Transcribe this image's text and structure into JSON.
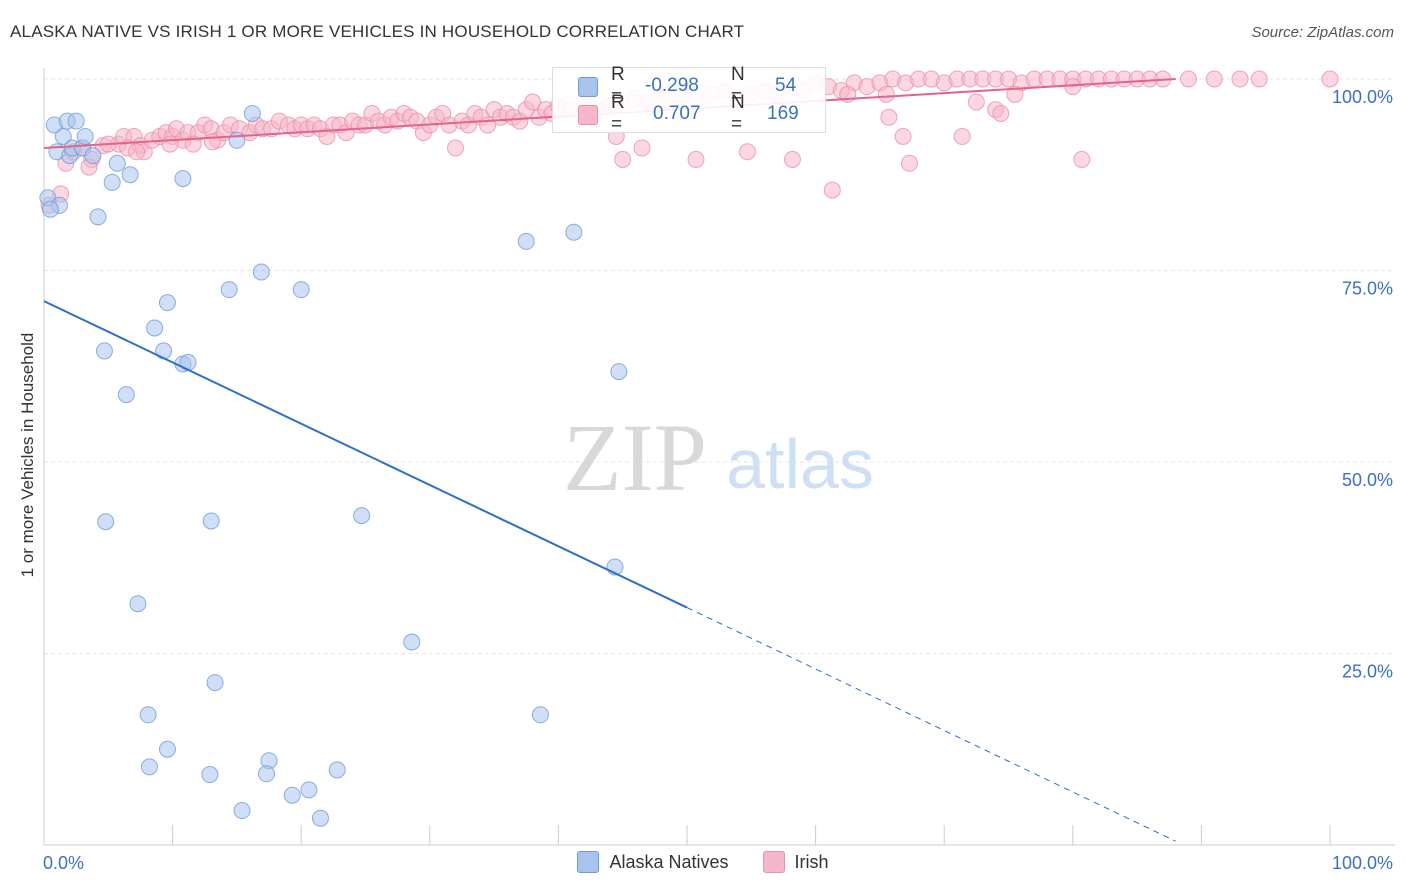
{
  "header": {
    "title": "ALASKA NATIVE VS IRISH 1 OR MORE VEHICLES IN HOUSEHOLD CORRELATION CHART",
    "source": "Source: ZipAtlas.com"
  },
  "watermark": {
    "zip": "ZIP",
    "atlas": "atlas"
  },
  "stats": {
    "series1": {
      "r_label": "R =",
      "r_value": "-0.298",
      "n_label": "N =",
      "n_value": "54"
    },
    "series2": {
      "r_label": "R =",
      "r_value": "0.707",
      "n_label": "N =",
      "n_value": "169"
    }
  },
  "colors": {
    "alaska_fill": "#a9c4ec",
    "alaska_stroke": "#6f9bdc",
    "alaska_line": "#2d6fcc",
    "irish_fill": "#f5b7c9",
    "irish_stroke": "#ec8faa",
    "irish_line": "#e4628b",
    "tick_label": "#3d6fc4",
    "grid": "#e6e6e6"
  },
  "chart_data": {
    "type": "scatter",
    "title": "ALASKA NATIVE VS IRISH 1 OR MORE VEHICLES IN HOUSEHOLD CORRELATION CHART",
    "xlabel": "",
    "ylabel": "1 or more Vehicles in Household",
    "xlim": [
      0,
      100
    ],
    "ylim": [
      0,
      100
    ],
    "x_tick_labels": [
      "0.0%",
      "100.0%"
    ],
    "y_ticks": [
      25,
      50,
      75,
      100
    ],
    "y_tick_labels": [
      "25.0%",
      "50.0%",
      "75.0%",
      "100.0%"
    ],
    "legend": [
      "Alaska Natives",
      "Irish"
    ],
    "series": [
      {
        "name": "Alaska Natives",
        "trend": {
          "x": [
            0,
            50
          ],
          "y": [
            71.0,
            31.0
          ],
          "dashed_to": [
            88.0,
            0.5
          ]
        },
        "points": [
          [
            0.3,
            84.5
          ],
          [
            0.8,
            94
          ],
          [
            1.0,
            90.5
          ],
          [
            1.2,
            83.5
          ],
          [
            1.5,
            92.5
          ],
          [
            1.8,
            94.5
          ],
          [
            2.0,
            90
          ],
          [
            2.2,
            91
          ],
          [
            2.5,
            94.5
          ],
          [
            3.0,
            91
          ],
          [
            3.2,
            92.5
          ],
          [
            3.8,
            90
          ],
          [
            4.2,
            82
          ],
          [
            5.3,
            86.5
          ],
          [
            5.7,
            89
          ],
          [
            6.7,
            87.5
          ],
          [
            10.8,
            87
          ],
          [
            15.0,
            92
          ],
          [
            16.2,
            95.5
          ],
          [
            14.4,
            72.5
          ],
          [
            16.9,
            74.8
          ],
          [
            20.0,
            72.5
          ],
          [
            8.6,
            67.5
          ],
          [
            9.6,
            70.8
          ],
          [
            4.7,
            64.5
          ],
          [
            9.3,
            64.5
          ],
          [
            10.8,
            62.8
          ],
          [
            11.2,
            63
          ],
          [
            6.4,
            58.8
          ],
          [
            37.5,
            78.8
          ],
          [
            41.2,
            80
          ],
          [
            44.7,
            61.8
          ],
          [
            4.8,
            42.2
          ],
          [
            13.0,
            42.3
          ],
          [
            24.7,
            43
          ],
          [
            44.4,
            36.3
          ],
          [
            7.3,
            31.5
          ],
          [
            28.6,
            26.5
          ],
          [
            13.3,
            21.2
          ],
          [
            8.1,
            17
          ],
          [
            38.6,
            17
          ],
          [
            9.6,
            12.5
          ],
          [
            17.5,
            11
          ],
          [
            8.2,
            10.2
          ],
          [
            12.9,
            9.2
          ],
          [
            17.3,
            9.3
          ],
          [
            22.8,
            9.8
          ],
          [
            19.3,
            6.5
          ],
          [
            20.6,
            7.2
          ],
          [
            15.4,
            4.5
          ],
          [
            21.5,
            3.5
          ],
          [
            0.5,
            83
          ]
        ]
      },
      {
        "name": "Irish",
        "trend": {
          "x": [
            0,
            88
          ],
          "y": [
            91.0,
            100.0
          ]
        },
        "points": [
          [
            0.4,
            83.5
          ],
          [
            1.3,
            85
          ],
          [
            1.7,
            89
          ],
          [
            2.3,
            90.5
          ],
          [
            3.0,
            91
          ],
          [
            3.7,
            89.5
          ],
          [
            4.6,
            91.3
          ],
          [
            5.8,
            91.5
          ],
          [
            6.2,
            92.5
          ],
          [
            7.0,
            92.5
          ],
          [
            7.5,
            91.3
          ],
          [
            7.8,
            90.5
          ],
          [
            8.4,
            92
          ],
          [
            9.0,
            92.5
          ],
          [
            9.5,
            93
          ],
          [
            10.0,
            92.5
          ],
          [
            10.3,
            93.5
          ],
          [
            10.8,
            92
          ],
          [
            11.2,
            93
          ],
          [
            12.0,
            93
          ],
          [
            12.5,
            94
          ],
          [
            13.0,
            93.5
          ],
          [
            13.5,
            92
          ],
          [
            14.0,
            93
          ],
          [
            14.5,
            94
          ],
          [
            15.2,
            93.5
          ],
          [
            16.0,
            93
          ],
          [
            16.5,
            94
          ],
          [
            17.0,
            93.5
          ],
          [
            17.7,
            93.5
          ],
          [
            18.3,
            94.5
          ],
          [
            19.0,
            94
          ],
          [
            19.5,
            93.5
          ],
          [
            20.0,
            94
          ],
          [
            20.5,
            93.5
          ],
          [
            21.0,
            94
          ],
          [
            21.5,
            93.5
          ],
          [
            22.0,
            92.5
          ],
          [
            22.5,
            94
          ],
          [
            23.0,
            94
          ],
          [
            23.5,
            93
          ],
          [
            24.0,
            94.5
          ],
          [
            24.5,
            94
          ],
          [
            25.0,
            94
          ],
          [
            25.5,
            95.5
          ],
          [
            26.0,
            94.5
          ],
          [
            26.5,
            94
          ],
          [
            27.0,
            95
          ],
          [
            27.5,
            94.5
          ],
          [
            28.0,
            95.5
          ],
          [
            28.5,
            95
          ],
          [
            29.0,
            94.5
          ],
          [
            29.5,
            93
          ],
          [
            30.0,
            94
          ],
          [
            30.5,
            95
          ],
          [
            31.0,
            95.5
          ],
          [
            31.5,
            94
          ],
          [
            32.0,
            91
          ],
          [
            32.5,
            94.5
          ],
          [
            33.0,
            94
          ],
          [
            33.5,
            95.5
          ],
          [
            34.0,
            95
          ],
          [
            34.5,
            94
          ],
          [
            35.0,
            96
          ],
          [
            35.5,
            95
          ],
          [
            36.0,
            95.5
          ],
          [
            36.5,
            95
          ],
          [
            37.0,
            94.5
          ],
          [
            37.5,
            96
          ],
          [
            38.0,
            97
          ],
          [
            38.5,
            95
          ],
          [
            39.0,
            96
          ],
          [
            39.5,
            95.5
          ],
          [
            40.0,
            96.5
          ],
          [
            41.0,
            96
          ],
          [
            42.0,
            97
          ],
          [
            43.0,
            96
          ],
          [
            44.0,
            96.5
          ],
          [
            44.5,
            92.5
          ],
          [
            45.0,
            89.5
          ],
          [
            45.5,
            97
          ],
          [
            46.0,
            97.5
          ],
          [
            46.5,
            91
          ],
          [
            47.0,
            97
          ],
          [
            48.0,
            98
          ],
          [
            49.0,
            97
          ],
          [
            50.0,
            98
          ],
          [
            51.0,
            97.5
          ],
          [
            52.0,
            98
          ],
          [
            53.0,
            98.5
          ],
          [
            54.0,
            97.5
          ],
          [
            55.0,
            98
          ],
          [
            56.0,
            98.5
          ],
          [
            57.0,
            98
          ],
          [
            58.0,
            99
          ],
          [
            59.0,
            98.5
          ],
          [
            60.0,
            99.5
          ],
          [
            61.0,
            99
          ],
          [
            62.0,
            98.5
          ],
          [
            63.0,
            99.5
          ],
          [
            64.0,
            99
          ],
          [
            65.0,
            99.5
          ],
          [
            66.0,
            100
          ],
          [
            67.0,
            99.5
          ],
          [
            68.0,
            100
          ],
          [
            69.0,
            100
          ],
          [
            70.0,
            99.5
          ],
          [
            71.0,
            100
          ],
          [
            72.0,
            100
          ],
          [
            73.0,
            100
          ],
          [
            74.0,
            100
          ],
          [
            75.0,
            100
          ],
          [
            76.0,
            99.5
          ],
          [
            77.0,
            100
          ],
          [
            78.0,
            100
          ],
          [
            79.0,
            100
          ],
          [
            80.0,
            100
          ],
          [
            81.0,
            100
          ],
          [
            82.0,
            100
          ],
          [
            83.0,
            100
          ],
          [
            84.0,
            100
          ],
          [
            85.0,
            100
          ],
          [
            86.0,
            100
          ],
          [
            87.0,
            100
          ],
          [
            89.0,
            100
          ],
          [
            91.0,
            100
          ],
          [
            93.0,
            100
          ],
          [
            94.5,
            100
          ],
          [
            100.0,
            100
          ],
          [
            50.7,
            89.5
          ],
          [
            54.7,
            90.5
          ],
          [
            58.2,
            89.5
          ],
          [
            61.3,
            85.5
          ],
          [
            62.5,
            98
          ],
          [
            65.5,
            98
          ],
          [
            65.7,
            95
          ],
          [
            66.8,
            92.5
          ],
          [
            67.3,
            89
          ],
          [
            71.4,
            92.5
          ],
          [
            72.5,
            97
          ],
          [
            74.0,
            96
          ],
          [
            74.4,
            95.5
          ],
          [
            75.5,
            98
          ],
          [
            80.0,
            99
          ],
          [
            80.7,
            89.5
          ],
          [
            3.5,
            88.5
          ],
          [
            5.0,
            91.5
          ],
          [
            6.5,
            91
          ],
          [
            7.2,
            90.5
          ],
          [
            9.8,
            91.5
          ],
          [
            11.6,
            91.5
          ],
          [
            13.1,
            91.8
          ]
        ]
      }
    ]
  }
}
